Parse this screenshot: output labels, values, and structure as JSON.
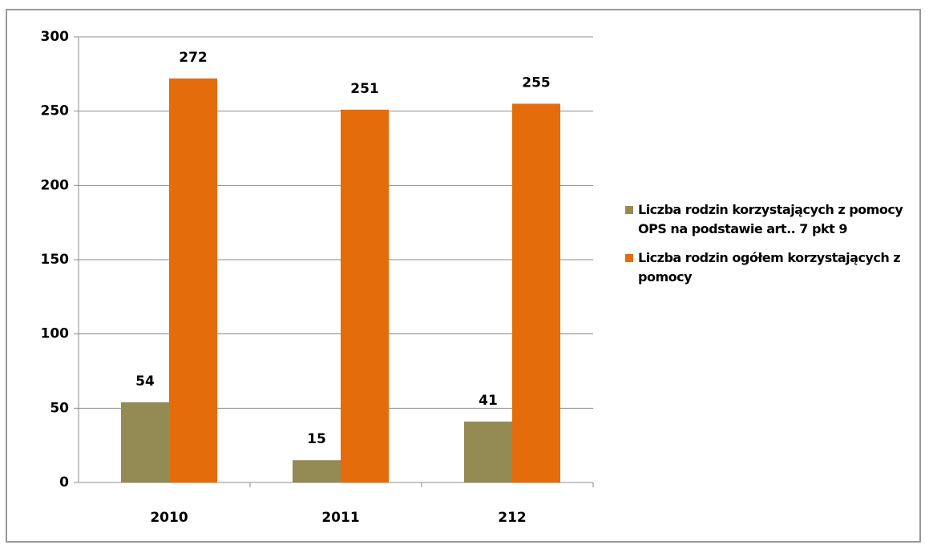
{
  "chart_data": {
    "type": "bar",
    "categories": [
      "2010",
      "2011",
      "212"
    ],
    "series": [
      {
        "name": "Liczba rodzin korzystających z pomocy OPS na podstawie art.. 7 pkt 9",
        "color": "#948a54",
        "values": [
          54,
          15,
          41
        ]
      },
      {
        "name": "Liczba rodzin ogółem korzystających z pomocy",
        "color": "#e46c0a",
        "values": [
          272,
          251,
          255
        ]
      }
    ],
    "ylim": [
      0,
      300
    ],
    "yticks": [
      0,
      50,
      100,
      150,
      200,
      250,
      300
    ],
    "grid": true,
    "legend": "right"
  }
}
